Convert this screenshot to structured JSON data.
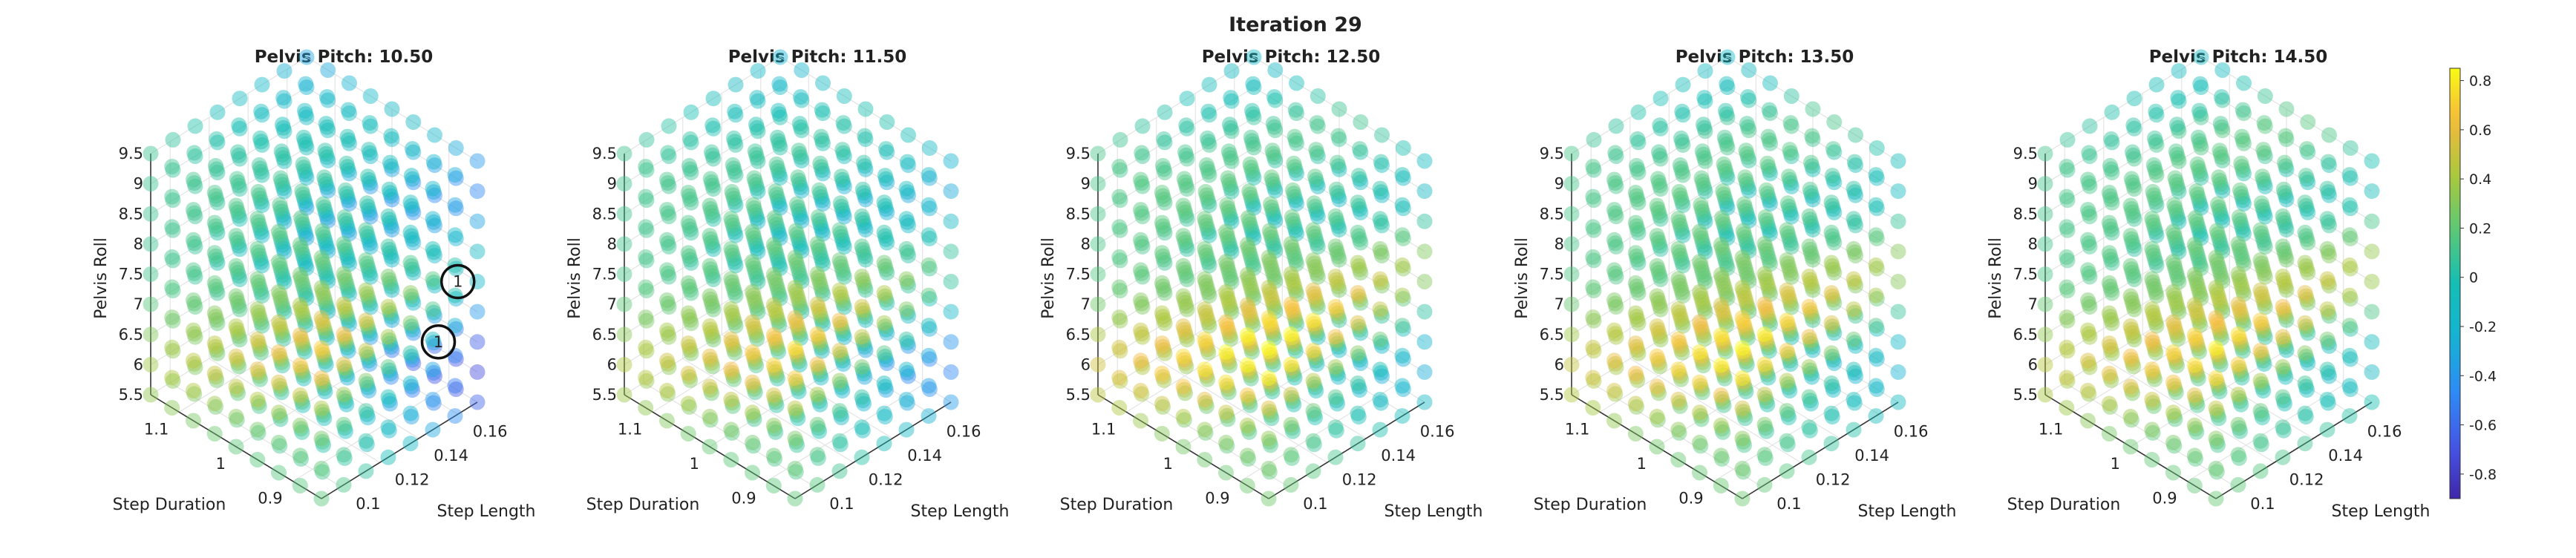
{
  "figure": {
    "title": "Iteration 29"
  },
  "chart_data": {
    "type": "scatter3d",
    "x_label": "Step Length",
    "y_label": "Step Duration",
    "z_label": "Pelvis Roll",
    "x_ticks": [
      "0.1",
      "0.12",
      "0.14",
      "0.16"
    ],
    "y_ticks": [
      "0.9",
      "1",
      "1.1"
    ],
    "z_ticks": [
      "5.5",
      "6",
      "6.5",
      "7",
      "7.5",
      "8",
      "8.5",
      "9",
      "9.5"
    ],
    "x_range": [
      0.09,
      0.17
    ],
    "y_range": [
      0.85,
      1.15
    ],
    "z_range": [
      5.5,
      9.5
    ],
    "grid": true,
    "panels": [
      {
        "title": "Pelvis Pitch: 10.50",
        "pitch": 10.5,
        "peak": 0.55,
        "trough": -0.7,
        "markers": [
          {
            "label": "1",
            "x": 0.16,
            "y": 0.85,
            "z": 7.7
          },
          {
            "label": "1",
            "x": 0.15,
            "y": 0.85,
            "z": 6.9
          }
        ]
      },
      {
        "title": "Pelvis Pitch: 11.50",
        "pitch": 11.5,
        "peak": 0.6,
        "trough": -0.45,
        "markers": []
      },
      {
        "title": "Pelvis Pitch: 12.50",
        "pitch": 12.5,
        "peak": 0.75,
        "trough": -0.25,
        "markers": []
      },
      {
        "title": "Pelvis Pitch: 13.50",
        "pitch": 13.5,
        "peak": 0.7,
        "trough": -0.2,
        "markers": []
      },
      {
        "title": "Pelvis Pitch: 14.50",
        "pitch": 14.5,
        "peak": 0.65,
        "trough": -0.1,
        "markers": []
      }
    ],
    "colorbar": {
      "ticks": [
        "0.8",
        "0.6",
        "0.4",
        "0.2",
        "0",
        "-0.2",
        "-0.4",
        "-0.6",
        "-0.8"
      ],
      "range": [
        -0.9,
        0.85
      ],
      "colormap": "parula"
    }
  }
}
